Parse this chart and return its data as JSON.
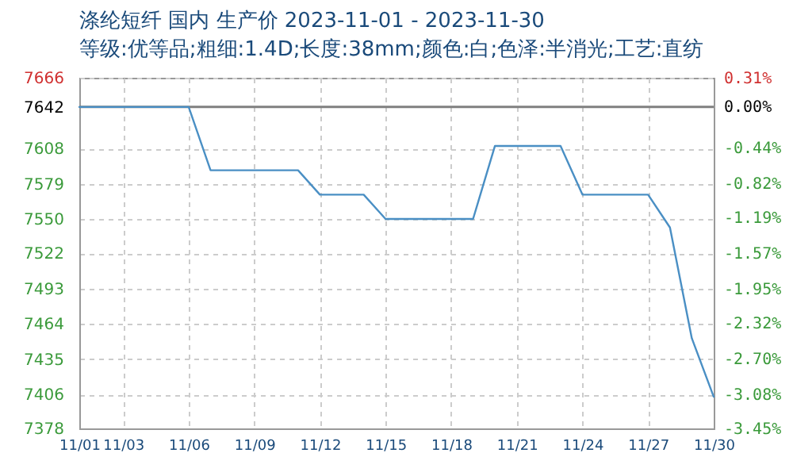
{
  "chart_data": {
    "type": "line",
    "title": "涤纶短纤 国内 生产价 2023-11-01 - 2023-11-30",
    "subtitle": "等级:优等品;粗细:1.4D;长度:38mm;颜色:白;色泽:半消光;工艺:直纺",
    "x": [
      "2023-11-01",
      "2023-11-06",
      "2023-11-07",
      "2023-11-11",
      "2023-11-12",
      "2023-11-14",
      "2023-11-15",
      "2023-11-19",
      "2023-11-20",
      "2023-11-23",
      "2023-11-24",
      "2023-11-27",
      "2023-11-28",
      "2023-11-29",
      "2023-11-30"
    ],
    "series": [
      {
        "color": "#4a8fc4",
        "values": [
          7642,
          7642,
          7590,
          7590,
          7570,
          7570,
          7550,
          7550,
          7610,
          7610,
          7570,
          7570,
          7543,
          7452,
          7404
        ]
      }
    ],
    "xlim": [
      "2023-11-01",
      "2023-11-30"
    ],
    "xticks": [
      {
        "value": "2023-11-01",
        "label": "11/01"
      },
      {
        "value": "2023-11-03",
        "label": "11/03"
      },
      {
        "value": "2023-11-06",
        "label": "11/06"
      },
      {
        "value": "2023-11-09",
        "label": "11/09"
      },
      {
        "value": "2023-11-12",
        "label": "11/12"
      },
      {
        "value": "2023-11-15",
        "label": "11/15"
      },
      {
        "value": "2023-11-18",
        "label": "11/18"
      },
      {
        "value": "2023-11-21",
        "label": "11/21"
      },
      {
        "value": "2023-11-24",
        "label": "11/24"
      },
      {
        "value": "2023-11-27",
        "label": "11/27"
      },
      {
        "value": "2023-11-30",
        "label": "11/30"
      }
    ],
    "ylim": [
      7378,
      7666
    ],
    "yticks": [
      7666,
      7642,
      7608,
      7579,
      7550,
      7522,
      7493,
      7464,
      7435,
      7406,
      7378
    ],
    "y2lim": [
      -3.45,
      0.31
    ],
    "y2ticks": [
      {
        "value": 0.31,
        "label": "0.31%"
      },
      {
        "value": 0,
        "label": "0.00%"
      },
      {
        "value": -0.44,
        "label": "-0.44%"
      },
      {
        "value": -0.82,
        "label": "-0.82%"
      },
      {
        "value": -1.19,
        "label": "-1.19%"
      },
      {
        "value": -1.57,
        "label": "-1.57%"
      },
      {
        "value": -1.95,
        "label": "-1.95%"
      },
      {
        "value": -2.32,
        "label": "-2.32%"
      },
      {
        "value": -2.7,
        "label": "-2.70%"
      },
      {
        "value": -3.08,
        "label": "-3.08%"
      },
      {
        "value": -3.45,
        "label": "-3.45%"
      }
    ],
    "ref_lines": [
      {
        "axis": "y",
        "value": 7642,
        "color": "#808080"
      }
    ],
    "grid": true,
    "marker": "none",
    "line_style": "solid"
  }
}
